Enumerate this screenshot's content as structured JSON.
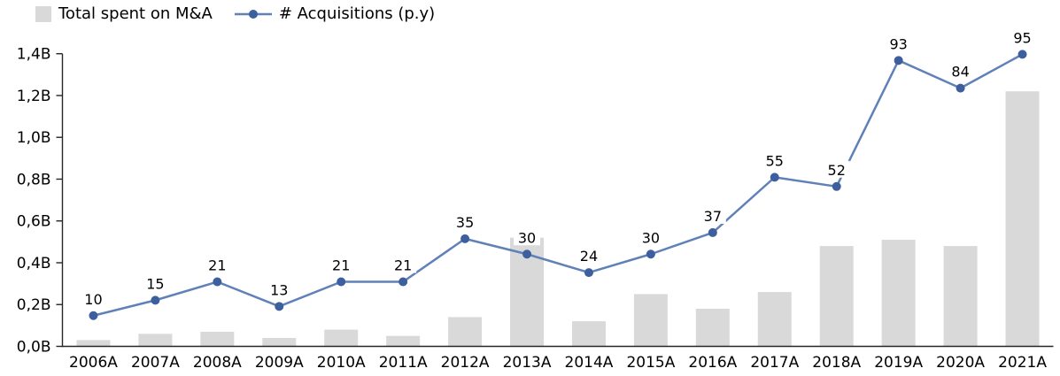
{
  "chart_data": {
    "type": "bar",
    "combo": "bar+line",
    "title": "",
    "categories": [
      "2006A",
      "2007A",
      "2008A",
      "2009A",
      "2010A",
      "2011A",
      "2012A",
      "2013A",
      "2014A",
      "2015A",
      "2016A",
      "2017A",
      "2018A",
      "2019A",
      "2020A",
      "2021A"
    ],
    "series": [
      {
        "name": "Total spent on M&A",
        "type": "bar",
        "unit": "B",
        "values": [
          0.03,
          0.06,
          0.07,
          0.04,
          0.08,
          0.05,
          0.14,
          0.52,
          0.12,
          0.25,
          0.18,
          0.26,
          0.48,
          0.51,
          0.48,
          1.22
        ]
      },
      {
        "name": "# Acquisitions (p.y)",
        "type": "line",
        "values": [
          10,
          15,
          21,
          13,
          21,
          21,
          35,
          30,
          24,
          30,
          37,
          55,
          52,
          93,
          84,
          95
        ],
        "data_labels_shown": true
      }
    ],
    "value_axis": {
      "ticks": [
        "0,0B",
        "0,2B",
        "0,4B",
        "0,6B",
        "0,8B",
        "1,0B",
        "1,2B",
        "1,4B"
      ],
      "min": 0,
      "max": 1.4
    },
    "line_axis": {
      "min": 0,
      "max": 100,
      "hidden": true
    },
    "grid": false,
    "legend_position": "top-left",
    "colors": {
      "bar": "#d9d9d9",
      "line": "#5f81b8",
      "marker": "#3d5f9e",
      "axis": "#262626",
      "text": "#000000"
    }
  }
}
